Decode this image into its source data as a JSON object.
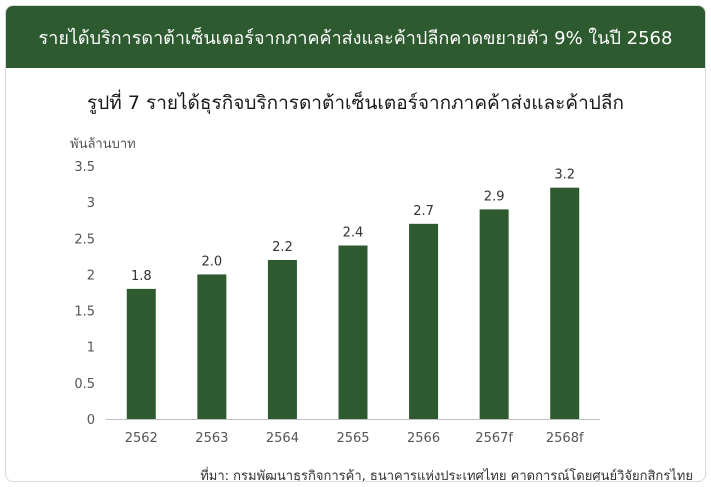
{
  "header": {
    "title": "รายได้บริการดาต้าเซ็นเตอร์จากภาคค้าส่งและค้าปลีกคาดขยายตัว 9% ในปี 2568"
  },
  "colors": {
    "header_bg": "#2e5a30",
    "bar": "#2e5a30",
    "axis": "#bfbfbf"
  },
  "chart_data": {
    "type": "bar",
    "title": "รูปที่ 7 รายได้ธุรกิจบริการดาต้าเซ็นเตอร์จากภาคค้าส่งและค้าปลีก",
    "ylabel": "พันล้านบาท",
    "xlabel": "",
    "categories": [
      "2562",
      "2563",
      "2564",
      "2565",
      "2566",
      "2567f",
      "2568f"
    ],
    "values": [
      1.8,
      2.0,
      2.2,
      2.4,
      2.7,
      2.9,
      3.2
    ],
    "value_labels": [
      "1.8",
      "2.0",
      "2.2",
      "2.4",
      "2.7",
      "2.9",
      "3.2"
    ],
    "ylim": [
      0,
      3.5
    ],
    "yticks": [
      "0",
      "0.5",
      "1",
      "1.5",
      "2",
      "2.5",
      "3",
      "3.5"
    ],
    "grid": false,
    "legend": "none"
  },
  "source": "ที่มา: กรมพัฒนาธุรกิจการค้า, ธนาคารแห่งประเทศไทย คาดการณ์โดยศูนย์วิจัยกสิกรไทย"
}
